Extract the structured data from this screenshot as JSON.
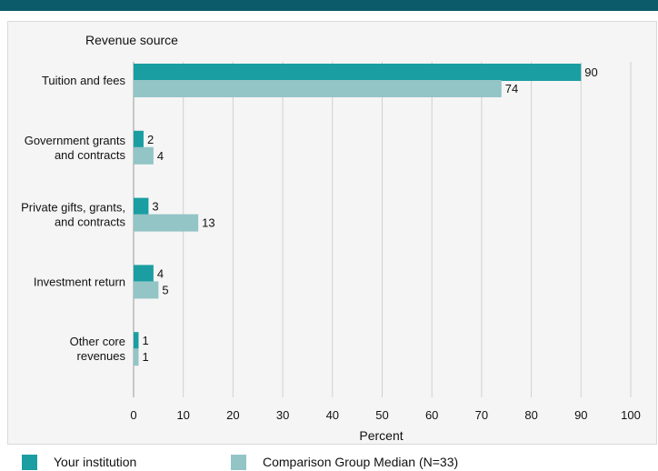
{
  "colors": {
    "top_bar": "#0b5b6a",
    "series_institution": "#1a9ea2",
    "series_comparison": "#93c4c6",
    "panel_bg": "#f5f5f5",
    "grid": "#d0d0d0"
  },
  "legend": {
    "institution_label": "Your institution",
    "comparison_label": "Comparison Group Median (N=33)"
  },
  "chart_data": {
    "type": "bar",
    "orientation": "horizontal",
    "ytitle": "Revenue source",
    "xlabel": "Percent",
    "xlim": [
      0,
      100
    ],
    "xticks": [
      0,
      10,
      20,
      30,
      40,
      50,
      60,
      70,
      80,
      90,
      100
    ],
    "grid": true,
    "legend_position": "bottom",
    "categories": [
      [
        "Tuition and fees"
      ],
      [
        "Government grants",
        "and contracts"
      ],
      [
        "Private gifts, grants,",
        "and contracts"
      ],
      [
        "Investment return"
      ],
      [
        "Other core",
        "revenues"
      ]
    ],
    "series": [
      {
        "name": "Your institution",
        "values": [
          90,
          2,
          3,
          4,
          1
        ]
      },
      {
        "name": "Comparison Group Median (N=33)",
        "values": [
          74,
          4,
          13,
          5,
          1
        ]
      }
    ]
  }
}
